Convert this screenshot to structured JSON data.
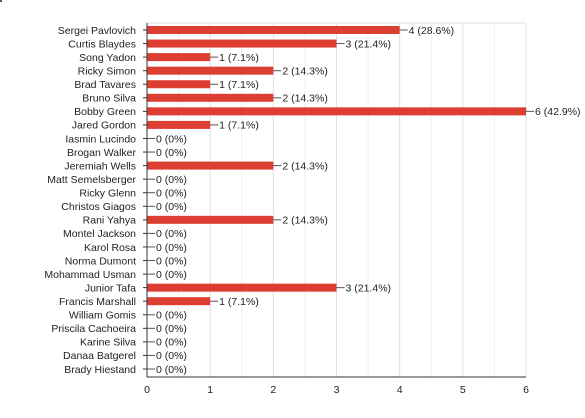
{
  "chart_data": {
    "type": "bar",
    "orientation": "horizontal",
    "categories": [
      "Sergei Pavlovich",
      "Curtis Blaydes",
      "Song Yadon",
      "Ricky Simon",
      "Brad Tavares",
      "Bruno Silva",
      "Bobby Green",
      "Jared Gordon",
      "Iasmin Lucindo",
      "Brogan Walker",
      "Jeremiah Wells",
      "Matt Semelsberger",
      "Ricky Glenn",
      "Christos Giagos",
      "Rani Yahya",
      "Montel Jackson",
      "Karol Rosa",
      "Norma Dumont",
      "Mohammad Usman",
      "Junior Tafa",
      "Francis Marshall",
      "William Gomis",
      "Priscila Cachoeira",
      "Karine Silva",
      "Danaa Batgerel",
      "Brady Hiestand"
    ],
    "values": [
      4,
      3,
      1,
      2,
      1,
      2,
      6,
      1,
      0,
      0,
      2,
      0,
      0,
      0,
      2,
      0,
      0,
      0,
      0,
      3,
      1,
      0,
      0,
      0,
      0,
      0
    ],
    "data_labels": [
      "4 (28.6%)",
      "3 (21.4%)",
      "1 (7.1%)",
      "2 (14.3%)",
      "1 (7.1%)",
      "2 (14.3%)",
      "6 (42.9%)",
      "1 (7.1%)",
      "0 (0%)",
      "0 (0%)",
      "2 (14.3%)",
      "0 (0%)",
      "0 (0%)",
      "0 (0%)",
      "2 (14.3%)",
      "0 (0%)",
      "0 (0%)",
      "0 (0%)",
      "0 (0%)",
      "3 (21.4%)",
      "1 (7.1%)",
      "0 (0%)",
      "0 (0%)",
      "0 (0%)",
      "0 (0%)",
      "0 (0%)"
    ],
    "xticks": [
      "0",
      "1",
      "2",
      "3",
      "4",
      "5",
      "6"
    ],
    "xlim": [
      0,
      6
    ],
    "grid": true,
    "bar_color": "#dc3e32",
    "grid_color": "#e0e0e0",
    "axis_color": "#333333",
    "title": "",
    "xlabel": "",
    "ylabel": ""
  }
}
